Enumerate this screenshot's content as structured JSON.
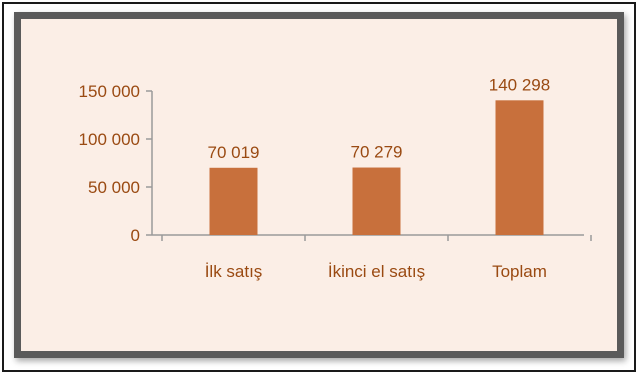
{
  "colors": {
    "bar": "#c8703c",
    "text": "#9a4a12",
    "axis": "#9a9a9a",
    "panel_bg": "#fbeee6",
    "panel_border": "#5a5a5a"
  },
  "chart_data": {
    "type": "bar",
    "categories": [
      "İlk satış",
      "İkinci el satış",
      "Toplam"
    ],
    "values": [
      70019,
      70279,
      140298
    ],
    "data_labels": [
      "70 019",
      "70 279",
      "140 298"
    ],
    "y_ticks": [
      0,
      50000,
      100000,
      150000
    ],
    "y_tick_labels": [
      "0",
      "50 000",
      "100 000",
      "150 000"
    ],
    "ylim": [
      0,
      150000
    ],
    "grid": false,
    "legend": "none",
    "title": "",
    "xlabel": "",
    "ylabel": ""
  }
}
